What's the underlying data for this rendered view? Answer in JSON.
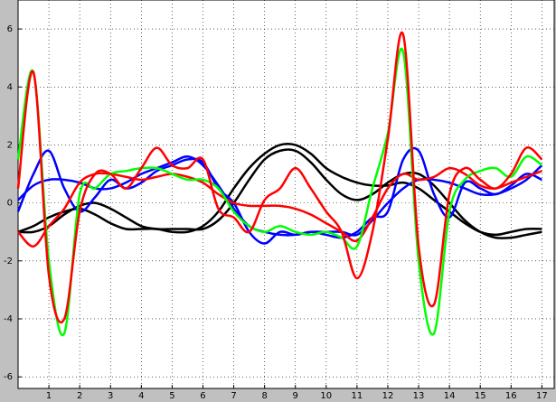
{
  "chart_data": {
    "type": "line",
    "x": [
      0,
      0.5,
      1,
      1.5,
      2,
      2.5,
      3,
      3.5,
      4,
      4.5,
      5,
      5.5,
      6,
      6.5,
      7,
      7.5,
      8,
      8.5,
      9,
      9.5,
      10,
      10.5,
      11,
      11.5,
      12,
      12.5,
      13,
      13.5,
      14,
      14.5,
      15,
      15.5,
      16,
      16.5,
      17
    ],
    "xlim": [
      0,
      17.4
    ],
    "ylim": [
      -6.4,
      7
    ],
    "xticks": [
      1,
      2,
      3,
      4,
      5,
      6,
      7,
      8,
      9,
      10,
      11,
      12,
      13,
      14,
      15,
      16,
      17
    ],
    "yticks": [
      -6,
      -4,
      -2,
      0,
      2,
      4,
      6
    ],
    "grid": true,
    "series": [
      {
        "color": "#000000",
        "values": [
          -1.0,
          -0.8,
          -0.5,
          -0.3,
          -0.2,
          -0.4,
          -0.7,
          -0.9,
          -0.9,
          -0.9,
          -1.0,
          -1.0,
          -0.8,
          -0.3,
          0.5,
          1.2,
          1.7,
          2.0,
          2.0,
          1.7,
          1.2,
          0.9,
          0.7,
          0.6,
          0.6,
          0.7,
          0.5,
          0.1,
          -0.3,
          -0.7,
          -1.0,
          -1.1,
          -1.0,
          -0.9,
          -0.9
        ]
      },
      {
        "color": "#000000",
        "values": [
          -1.0,
          -1.0,
          -0.8,
          -0.4,
          -0.1,
          0.0,
          -0.2,
          -0.5,
          -0.8,
          -0.9,
          -0.9,
          -0.9,
          -0.9,
          -0.6,
          0.0,
          0.8,
          1.5,
          1.8,
          1.8,
          1.4,
          0.8,
          0.3,
          0.1,
          0.3,
          0.7,
          1.0,
          1.0,
          0.6,
          0.0,
          -0.6,
          -1.0,
          -1.2,
          -1.2,
          -1.1,
          -1.0
        ]
      },
      {
        "color": "#0000ff",
        "values": [
          0.1,
          0.6,
          0.8,
          0.8,
          0.7,
          0.5,
          0.5,
          0.7,
          1.0,
          1.2,
          1.4,
          1.6,
          1.3,
          0.6,
          -0.2,
          -0.8,
          -1.0,
          -1.1,
          -1.1,
          -1.0,
          -1.0,
          -1.0,
          -1.1,
          -0.6,
          0.0,
          0.5,
          0.8,
          0.8,
          0.7,
          0.5,
          0.3,
          0.3,
          0.5,
          0.8,
          1.3
        ]
      },
      {
        "color": "#0000ff",
        "values": [
          -0.3,
          1.0,
          1.8,
          0.5,
          -0.3,
          0.2,
          0.8,
          0.5,
          0.7,
          1.1,
          1.3,
          1.5,
          1.4,
          0.5,
          0.0,
          -1.0,
          -1.4,
          -1.0,
          -1.1,
          -1.0,
          -1.1,
          -1.2,
          -1.0,
          -0.5,
          -0.3,
          1.5,
          1.8,
          0.3,
          -0.5,
          0.7,
          0.5,
          0.3,
          0.6,
          1.0,
          0.8
        ]
      },
      {
        "color": "#ff0000",
        "values": [
          -1.0,
          -1.5,
          -0.8,
          -0.2,
          0.7,
          1.0,
          1.0,
          0.9,
          0.8,
          0.9,
          1.0,
          0.9,
          0.7,
          0.3,
          0.0,
          -0.1,
          -0.1,
          -0.1,
          -0.2,
          -0.4,
          -0.7,
          -1.0,
          -1.3,
          -0.5,
          0.5,
          1.0,
          0.8,
          0.9,
          1.2,
          1.0,
          0.6,
          0.5,
          0.7,
          0.9,
          1.1
        ]
      },
      {
        "color": "#00ff00",
        "values": [
          1.5,
          4.5,
          -2.0,
          -4.5,
          0.3,
          0.5,
          1.0,
          1.1,
          1.2,
          1.2,
          1.0,
          0.8,
          0.8,
          0.5,
          -0.3,
          -0.8,
          -1.0,
          -0.8,
          -1.0,
          -1.1,
          -1.0,
          -1.2,
          -1.5,
          0.5,
          2.4,
          5.2,
          -2.0,
          -4.5,
          -0.3,
          0.8,
          1.1,
          1.2,
          0.9,
          1.6,
          1.3
        ]
      },
      {
        "color": "#ff0000",
        "values": [
          0.5,
          4.5,
          -2.5,
          -4.0,
          -0.3,
          1.0,
          1.0,
          0.5,
          1.2,
          1.9,
          1.3,
          1.2,
          1.5,
          -0.2,
          -0.5,
          -1.0,
          0.1,
          0.5,
          1.2,
          0.5,
          -0.3,
          -1.0,
          -2.6,
          -1.0,
          2.2,
          5.8,
          -1.5,
          -3.5,
          0.3,
          1.2,
          0.8,
          0.5,
          1.0,
          1.9,
          1.5
        ]
      }
    ]
  }
}
